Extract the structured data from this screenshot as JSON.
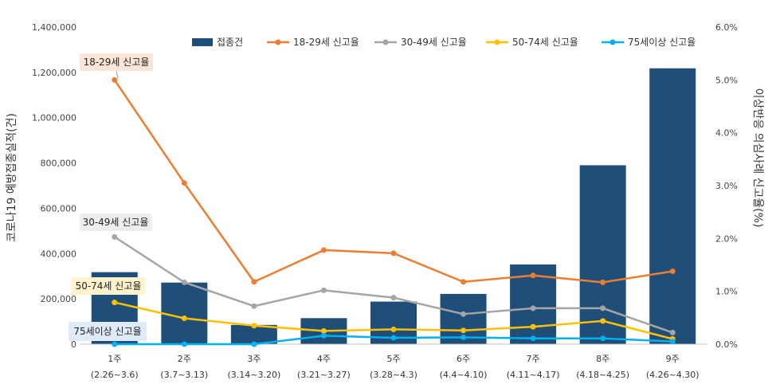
{
  "chart_data": {
    "type": "bar",
    "title": "",
    "ylabel": "코로나19 예방접종실적(건)",
    "y2label": "이상반응 의심사례 신고율(%)",
    "ylim": [
      0,
      1400000
    ],
    "y2lim": [
      0,
      6
    ],
    "grid": false,
    "legend_position": "top",
    "y_ticks": [
      "0",
      "200,000",
      "400,000",
      "600,000",
      "800,000",
      "1,000,000",
      "1,200,000",
      "1,400,000"
    ],
    "y2_ticks": [
      "0.0%",
      "1.0%",
      "2.0%",
      "3.0%",
      "4.0%",
      "5.0%",
      "6.0%"
    ],
    "categories": [
      {
        "week": "1주",
        "range": "(2.26~3.6)"
      },
      {
        "week": "2주",
        "range": "(3.7~3.13)"
      },
      {
        "week": "3주",
        "range": "(3.14~3.20)"
      },
      {
        "week": "4주",
        "range": "(3.21~3.27)"
      },
      {
        "week": "5주",
        "range": "(3.28~4.3)"
      },
      {
        "week": "6주",
        "range": "(4.4~4.10)"
      },
      {
        "week": "7주",
        "range": "(4.11~4.17)"
      },
      {
        "week": "8주",
        "range": "(4.18~4.25)"
      },
      {
        "week": "9주",
        "range": "(4.26~4.30)"
      }
    ],
    "bars": {
      "name": "접종건",
      "color": "#1f4e79",
      "values": [
        318000,
        272000,
        85000,
        115000,
        188000,
        222000,
        352000,
        790000,
        1218000
      ]
    },
    "series": [
      {
        "name": "18-29세 신고율",
        "color": "#ed7d31",
        "values": [
          5.0,
          3.05,
          1.18,
          1.78,
          1.72,
          1.18,
          1.3,
          1.17,
          1.38
        ]
      },
      {
        "name": "30-49세 신고율",
        "color": "#a5a5a5",
        "values": [
          2.03,
          1.17,
          0.72,
          1.02,
          0.88,
          0.57,
          0.68,
          0.68,
          0.22
        ]
      },
      {
        "name": "50-74세 신고율",
        "color": "#ffc000",
        "values": [
          0.79,
          0.49,
          0.35,
          0.25,
          0.28,
          0.26,
          0.33,
          0.44,
          0.1
        ]
      },
      {
        "name": "75세이상 신고율",
        "color": "#00b0f0",
        "values": [
          0.0,
          0.0,
          0.0,
          0.16,
          0.12,
          0.13,
          0.11,
          0.11,
          0.05
        ]
      }
    ],
    "callouts": [
      {
        "text": "18-29세 신고율",
        "series": "18-29세 신고율",
        "bg": "#fbe5d6"
      },
      {
        "text": "30-49세 신고율",
        "series": "30-49세 신고율",
        "bg": "#ededed"
      },
      {
        "text": "50-74세 신고율",
        "series": "50-74세 신고율",
        "bg": "#fff2cc"
      },
      {
        "text": "75세이상 신고율",
        "series": "75세이상 신고율",
        "bg": "#deebf7"
      }
    ]
  }
}
